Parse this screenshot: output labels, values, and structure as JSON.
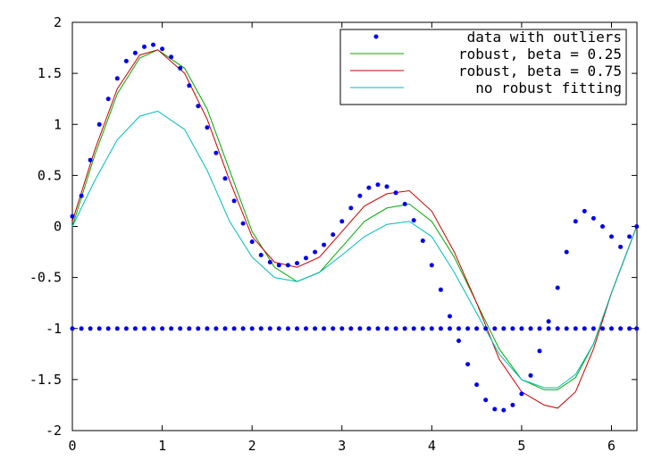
{
  "chart_data": {
    "type": "line",
    "title": "",
    "xlabel": "",
    "ylabel": "",
    "xlim": [
      0,
      6.2832
    ],
    "ylim": [
      -2,
      2
    ],
    "xticks": [
      0,
      1,
      2,
      3,
      4,
      5,
      6
    ],
    "yticks": [
      2,
      1.5,
      1,
      0.5,
      0,
      -0.5,
      -1,
      -1.5,
      -2
    ],
    "xtick_labels": [
      "0",
      "1",
      "2",
      "3",
      "4",
      "5",
      "6"
    ],
    "ytick_labels": [
      "2",
      "1.5",
      "1",
      "0.5",
      "0",
      "-0.5",
      "-1",
      "-1.5",
      "-2"
    ],
    "grid": false,
    "legend_position": "top-right",
    "legend": [
      {
        "label": "data with outliers",
        "color": "#0000ee",
        "style": "dots"
      },
      {
        "label": "robust, beta = 0.25",
        "color": "#00aa00",
        "style": "line"
      },
      {
        "label": "robust, beta = 0.75",
        "color": "#cc0000",
        "style": "line"
      },
      {
        "label": "no robust fitting",
        "color": "#00bbbb",
        "style": "line"
      }
    ],
    "series": [
      {
        "name": "data with outliers",
        "kind": "scatter",
        "color": "#0000ee",
        "x": [
          0,
          0.1,
          0.2,
          0.3,
          0.4,
          0.5,
          0.6,
          0.7,
          0.8,
          0.9,
          1.0,
          1.1,
          1.2,
          1.3,
          1.4,
          1.5,
          1.6,
          1.7,
          1.8,
          1.9,
          2.0,
          2.1,
          2.2,
          2.3,
          2.4,
          2.5,
          2.6,
          2.7,
          2.8,
          2.9,
          3.0,
          3.1,
          3.2,
          3.3,
          3.4,
          3.5,
          3.6,
          3.7,
          3.8,
          3.9,
          4.0,
          4.1,
          4.2,
          4.3,
          4.4,
          4.5,
          4.6,
          4.7,
          4.8,
          4.9,
          5.0,
          5.1,
          5.2,
          5.3,
          5.4,
          5.5,
          5.6,
          5.7,
          5.8,
          5.9,
          6.0,
          6.1,
          6.2,
          6.28
        ],
        "y": [
          0.1,
          0.3,
          0.65,
          1.0,
          1.25,
          1.45,
          1.62,
          1.7,
          1.76,
          1.78,
          1.74,
          1.66,
          1.55,
          1.38,
          1.18,
          0.97,
          0.72,
          0.47,
          0.25,
          0.03,
          -0.15,
          -0.28,
          -0.35,
          -0.38,
          -0.38,
          -0.36,
          -0.31,
          -0.25,
          -0.18,
          -0.08,
          0.05,
          0.18,
          0.3,
          0.38,
          0.41,
          0.39,
          0.33,
          0.22,
          0.06,
          -0.14,
          -0.38,
          -0.62,
          -0.88,
          -1.12,
          -1.35,
          -1.55,
          -1.7,
          -1.79,
          -1.8,
          -1.75,
          -1.64,
          -1.46,
          -1.22,
          -0.93,
          -0.6,
          -0.25,
          0.05,
          0.15,
          0.08,
          0.0,
          -0.1,
          -0.2,
          -0.1,
          0.0
        ]
      },
      {
        "name": "outliers",
        "kind": "scatter",
        "color": "#0000ee",
        "x": [
          0,
          0.1,
          0.2,
          0.3,
          0.4,
          0.5,
          0.6,
          0.7,
          0.8,
          0.9,
          1.0,
          1.1,
          1.2,
          1.3,
          1.4,
          1.5,
          1.6,
          1.7,
          1.8,
          1.9,
          2.0,
          2.1,
          2.2,
          2.3,
          2.4,
          2.5,
          2.6,
          2.7,
          2.8,
          2.9,
          3.0,
          3.1,
          3.2,
          3.3,
          3.4,
          3.5,
          3.6,
          3.7,
          3.8,
          3.9,
          4.0,
          4.1,
          4.2,
          4.3,
          4.4,
          4.5,
          4.6,
          4.7,
          4.8,
          4.9,
          5.0,
          5.1,
          5.2,
          5.3,
          5.4,
          5.5,
          5.6,
          5.7,
          5.8,
          5.9,
          6.0,
          6.1,
          6.2,
          6.28
        ],
        "y": [
          -1,
          -1,
          -1,
          -1,
          -1,
          -1,
          -1,
          -1,
          -1,
          -1,
          -1,
          -1,
          -1,
          -1,
          -1,
          -1,
          -1,
          -1,
          -1,
          -1,
          -1,
          -1,
          -1,
          -1,
          -1,
          -1,
          -1,
          -1,
          -1,
          -1,
          -1,
          -1,
          -1,
          -1,
          -1,
          -1,
          -1,
          -1,
          -1,
          -1,
          -1,
          -1,
          -1,
          -1,
          -1,
          -1,
          -1,
          -1,
          -1,
          -1,
          -1,
          -1,
          -1,
          -1,
          -1,
          -1,
          -1,
          -1,
          -1,
          -1,
          -1,
          -1,
          -1,
          -1
        ]
      },
      {
        "name": "robust, beta = 0.25",
        "kind": "line",
        "color": "#00aa00",
        "x": [
          0,
          0.25,
          0.5,
          0.75,
          0.95,
          1.25,
          1.5,
          1.75,
          2.0,
          2.25,
          2.5,
          2.75,
          3.0,
          3.25,
          3.5,
          3.75,
          4.0,
          4.25,
          4.5,
          4.75,
          5.0,
          5.25,
          5.4,
          5.6,
          5.8,
          6.0,
          6.28
        ],
        "y": [
          0.0,
          0.7,
          1.3,
          1.65,
          1.73,
          1.55,
          1.15,
          0.55,
          -0.05,
          -0.4,
          -0.54,
          -0.45,
          -0.2,
          0.05,
          0.18,
          0.22,
          0.05,
          -0.3,
          -0.75,
          -1.2,
          -1.5,
          -1.6,
          -1.6,
          -1.48,
          -1.15,
          -0.65,
          0.0
        ]
      },
      {
        "name": "robust, beta = 0.75",
        "kind": "line",
        "color": "#cc0000",
        "x": [
          0,
          0.25,
          0.5,
          0.75,
          0.95,
          1.25,
          1.5,
          1.75,
          2.0,
          2.25,
          2.5,
          2.75,
          3.0,
          3.25,
          3.5,
          3.75,
          4.0,
          4.25,
          4.5,
          4.75,
          5.0,
          5.25,
          5.4,
          5.6,
          5.8,
          6.0,
          6.28
        ],
        "y": [
          0.05,
          0.75,
          1.35,
          1.68,
          1.73,
          1.5,
          1.05,
          0.45,
          -0.1,
          -0.35,
          -0.4,
          -0.3,
          -0.05,
          0.2,
          0.32,
          0.35,
          0.15,
          -0.25,
          -0.75,
          -1.3,
          -1.62,
          -1.75,
          -1.78,
          -1.62,
          -1.2,
          -0.65,
          0.0
        ]
      },
      {
        "name": "no robust fitting",
        "kind": "line",
        "color": "#00bbbb",
        "x": [
          0,
          0.25,
          0.5,
          0.75,
          0.95,
          1.25,
          1.5,
          1.75,
          2.0,
          2.25,
          2.5,
          2.75,
          3.0,
          3.25,
          3.5,
          3.75,
          4.0,
          4.25,
          4.5,
          4.75,
          5.0,
          5.25,
          5.4,
          5.6,
          5.8,
          6.0,
          6.28
        ],
        "y": [
          0.0,
          0.45,
          0.85,
          1.08,
          1.13,
          0.95,
          0.55,
          0.05,
          -0.3,
          -0.5,
          -0.54,
          -0.45,
          -0.28,
          -0.1,
          0.02,
          0.05,
          -0.1,
          -0.45,
          -0.85,
          -1.25,
          -1.5,
          -1.58,
          -1.58,
          -1.45,
          -1.15,
          -0.65,
          0.0
        ]
      }
    ]
  }
}
